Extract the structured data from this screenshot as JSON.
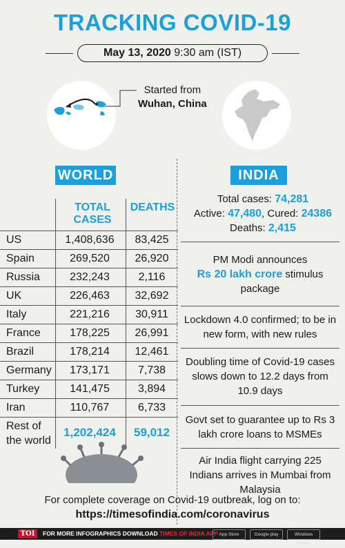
{
  "title": "TRACKING COVID-19",
  "date": {
    "bold": "May 13, 2020",
    "rest": "9:30 am (IST)"
  },
  "origin": {
    "line1": "Started from",
    "line2": "Wuhan, China"
  },
  "world": {
    "header": "WORLD",
    "columns": {
      "cases": [
        "TOTAL",
        "CASES"
      ],
      "deaths": "DEATHS"
    },
    "rows": [
      {
        "country": "US",
        "cases": "1,408,636",
        "deaths": "83,425"
      },
      {
        "country": "Spain",
        "cases": "269,520",
        "deaths": "26,920"
      },
      {
        "country": "Russia",
        "cases": "232,243",
        "deaths": "2,116"
      },
      {
        "country": "UK",
        "cases": "226,463",
        "deaths": "32,692"
      },
      {
        "country": "Italy",
        "cases": "221,216",
        "deaths": "30,911"
      },
      {
        "country": "France",
        "cases": "178,225",
        "deaths": "26,991"
      },
      {
        "country": "Brazil",
        "cases": "178,214",
        "deaths": "12,461"
      },
      {
        "country": "Germany",
        "cases": "173,171",
        "deaths": "7,738"
      },
      {
        "country": "Turkey",
        "cases": "141,475",
        "deaths": "3,894"
      },
      {
        "country": "Iran",
        "cases": "110,767",
        "deaths": "6,733"
      }
    ],
    "rest": {
      "label1": "Rest of",
      "label2": "the world",
      "cases": "1,202,424",
      "deaths": "59,012"
    }
  },
  "india": {
    "header": "INDIA",
    "total_label": "Total cases:",
    "total": "74,281",
    "active_label": "Active:",
    "active": "47,480",
    "cured_label": ", Cured:",
    "cured": "24386",
    "deaths_label": "Deaths:",
    "deaths": "2,415"
  },
  "news": {
    "n1": {
      "pre": "PM Modi announces",
      "hl": "Rs 20 lakh crore",
      "post": " stimulus package"
    },
    "n2": "Lockdown 4.0 confirmed; to be in new form, with new rules",
    "n3": "Doubling time of Covid-19 cases slows down to 12.2 days from 10.9 days",
    "n4": "Govt set to guarantee up to Rs 3 lakh crore loans to MSMEs",
    "n5": "Air India flight carrying 225 Indians arrives in Mumbai from Malaysia"
  },
  "footer": {
    "line": "For complete coverage on Covid-19 outbreak, log on to:",
    "url": "https://timesofindia.com/coronavirus"
  },
  "bottom_bar": {
    "logo": "TOI",
    "text_white": "FOR MORE INFOGRAPHICS DOWNLOAD",
    "text_red": "TIMES OF INDIA APP",
    "stores": [
      "App Store",
      "Google play",
      "Windows Phone"
    ]
  },
  "colors": {
    "accent": "#1aa0dc",
    "background": "#f0f0ed",
    "toi_red": "#c8102e"
  }
}
